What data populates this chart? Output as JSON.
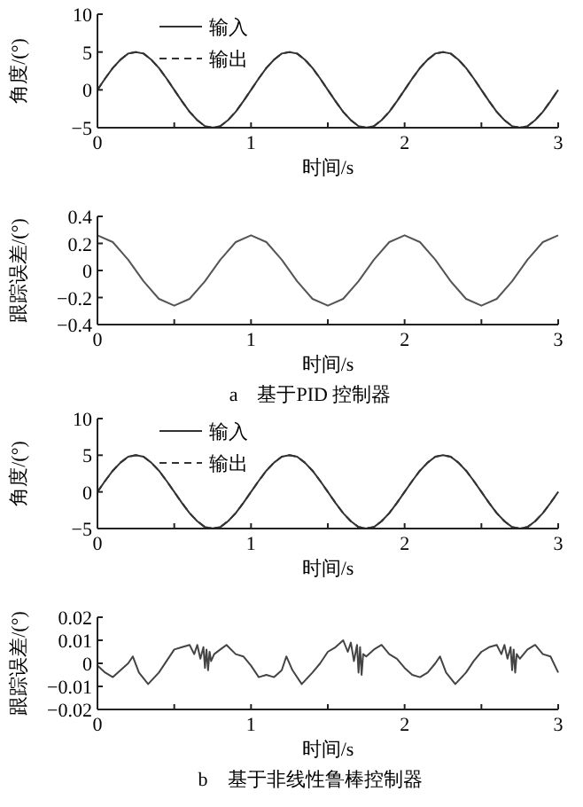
{
  "chart_data": [
    {
      "type": "line",
      "x": [
        0,
        0.05,
        0.1,
        0.15,
        0.2,
        0.25,
        0.3,
        0.35,
        0.4,
        0.45,
        0.5,
        0.55,
        0.6,
        0.65,
        0.7,
        0.75,
        0.8,
        0.85,
        0.9,
        0.95,
        1,
        1.05,
        1.1,
        1.15,
        1.2,
        1.25,
        1.3,
        1.35,
        1.4,
        1.45,
        1.5,
        1.55,
        1.6,
        1.65,
        1.7,
        1.75,
        1.8,
        1.85,
        1.9,
        1.95,
        2,
        2.05,
        2.1,
        2.15,
        2.2,
        2.25,
        2.3,
        2.35,
        2.4,
        2.45,
        2.5,
        2.55,
        2.6,
        2.65,
        2.7,
        2.75,
        2.8,
        2.85,
        2.9,
        2.95,
        3
      ],
      "series": [
        {
          "name": "输入",
          "color": "#333333",
          "line_style": "solid",
          "values": [
            0,
            1.5,
            2.9,
            4,
            4.8,
            5,
            4.8,
            4,
            2.9,
            1.5,
            0,
            -1.5,
            -2.9,
            -4,
            -4.8,
            -5,
            -4.8,
            -4,
            -2.9,
            -1.5,
            0,
            1.5,
            2.9,
            4,
            4.8,
            5,
            4.8,
            4,
            2.9,
            1.5,
            0,
            -1.5,
            -2.9,
            -4,
            -4.8,
            -5,
            -4.8,
            -4,
            -2.9,
            -1.5,
            0,
            1.5,
            2.9,
            4,
            4.8,
            5,
            4.8,
            4,
            2.9,
            1.5,
            0,
            -1.5,
            -2.9,
            -4,
            -4.8,
            -5,
            -4.8,
            -4,
            -2.9,
            -1.5,
            0
          ]
        },
        {
          "name": "输出",
          "color": "#333333",
          "line_style": "dashed",
          "values": [
            0,
            1.5,
            2.9,
            4,
            4.8,
            5,
            4.8,
            4,
            2.9,
            1.5,
            0,
            -1.5,
            -2.9,
            -4,
            -4.8,
            -5,
            -4.8,
            -4,
            -2.9,
            -1.5,
            0,
            1.5,
            2.9,
            4,
            4.8,
            5,
            4.8,
            4,
            2.9,
            1.5,
            0,
            -1.5,
            -2.9,
            -4,
            -4.8,
            -5,
            -4.8,
            -4,
            -2.9,
            -1.5,
            0,
            1.5,
            2.9,
            4,
            4.8,
            5,
            4.8,
            4,
            2.9,
            1.5,
            0,
            -1.5,
            -2.9,
            -4,
            -4.8,
            -5,
            -4.8,
            -4,
            -2.9,
            -1.5,
            0
          ]
        }
      ],
      "xlim": [
        0,
        3
      ],
      "xticks": [
        0,
        {
          "value": 0.5,
          "label": null
        },
        1,
        {
          "value": 1.5,
          "label": null
        },
        2,
        {
          "value": 2.5,
          "label": null
        },
        3
      ],
      "ylim": [
        -5,
        10
      ],
      "yticks": [
        -5,
        0,
        5,
        10
      ],
      "xlabel": "时间/s",
      "ylabel": "角度/(°)",
      "legend": "top left"
    },
    {
      "type": "line",
      "x": [
        0,
        0.1,
        0.2,
        0.3,
        0.4,
        0.5,
        0.6,
        0.7,
        0.8,
        0.9,
        1,
        1.1,
        1.2,
        1.3,
        1.4,
        1.5,
        1.6,
        1.7,
        1.8,
        1.9,
        2,
        2.1,
        2.2,
        2.3,
        2.4,
        2.5,
        2.6,
        2.7,
        2.8,
        2.9,
        3
      ],
      "series": [
        {
          "color": "#555555",
          "values": [
            0.26,
            0.21,
            0.08,
            -0.08,
            -0.21,
            -0.26,
            -0.21,
            -0.08,
            0.08,
            0.21,
            0.26,
            0.21,
            0.08,
            -0.08,
            -0.21,
            -0.26,
            -0.21,
            -0.08,
            0.08,
            0.21,
            0.26,
            0.21,
            0.08,
            -0.08,
            -0.21,
            -0.26,
            -0.21,
            -0.08,
            0.08,
            0.21,
            0.26
          ]
        }
      ],
      "xlim": [
        0,
        3
      ],
      "xticks": [
        0,
        {
          "value": 0.5,
          "label": null
        },
        1,
        {
          "value": 1.5,
          "label": null
        },
        2,
        {
          "value": 2.5,
          "label": null
        },
        3
      ],
      "ylim": [
        -0.4,
        0.4
      ],
      "yticks": [
        -0.4,
        -0.2,
        0,
        0.2,
        0.4
      ],
      "xlabel": "时间/s",
      "ylabel": "跟踪误差/(°)",
      "annotations": [
        "a　基于PID 控制器"
      ]
    },
    {
      "type": "line",
      "x": [
        0,
        0.05,
        0.1,
        0.15,
        0.2,
        0.25,
        0.3,
        0.35,
        0.4,
        0.45,
        0.5,
        0.55,
        0.6,
        0.65,
        0.7,
        0.75,
        0.8,
        0.85,
        0.9,
        0.95,
        1,
        1.05,
        1.1,
        1.15,
        1.2,
        1.25,
        1.3,
        1.35,
        1.4,
        1.45,
        1.5,
        1.55,
        1.6,
        1.65,
        1.7,
        1.75,
        1.8,
        1.85,
        1.9,
        1.95,
        2,
        2.05,
        2.1,
        2.15,
        2.2,
        2.25,
        2.3,
        2.35,
        2.4,
        2.45,
        2.5,
        2.55,
        2.6,
        2.65,
        2.7,
        2.75,
        2.8,
        2.85,
        2.9,
        2.95,
        3
      ],
      "series": [
        {
          "name": "输入",
          "color": "#333333",
          "line_style": "solid",
          "values": [
            0,
            1.5,
            2.9,
            4,
            4.8,
            5,
            4.8,
            4,
            2.9,
            1.5,
            0,
            -1.5,
            -2.9,
            -4,
            -4.8,
            -5,
            -4.8,
            -4,
            -2.9,
            -1.5,
            0,
            1.5,
            2.9,
            4,
            4.8,
            5,
            4.8,
            4,
            2.9,
            1.5,
            0,
            -1.5,
            -2.9,
            -4,
            -4.8,
            -5,
            -4.8,
            -4,
            -2.9,
            -1.5,
            0,
            1.5,
            2.9,
            4,
            4.8,
            5,
            4.8,
            4,
            2.9,
            1.5,
            0,
            -1.5,
            -2.9,
            -4,
            -4.8,
            -5,
            -4.8,
            -4,
            -2.9,
            -1.5,
            0
          ]
        },
        {
          "name": "输出",
          "color": "#333333",
          "line_style": "dashed",
          "values": [
            0,
            1.5,
            2.9,
            4,
            4.8,
            5,
            4.8,
            4,
            2.9,
            1.5,
            0,
            -1.5,
            -2.9,
            -4,
            -4.8,
            -5,
            -4.8,
            -4,
            -2.9,
            -1.5,
            0,
            1.5,
            2.9,
            4,
            4.8,
            5,
            4.8,
            4,
            2.9,
            1.5,
            0,
            -1.5,
            -2.9,
            -4,
            -4.8,
            -5,
            -4.8,
            -4,
            -2.9,
            -1.5,
            0,
            1.5,
            2.9,
            4,
            4.8,
            5,
            4.8,
            4,
            2.9,
            1.5,
            0,
            -1.5,
            -2.9,
            -4,
            -4.8,
            -5,
            -4.8,
            -4,
            -2.9,
            -1.5,
            0
          ]
        }
      ],
      "xlim": [
        0,
        3
      ],
      "xticks": [
        0,
        {
          "value": 0.5,
          "label": null
        },
        1,
        {
          "value": 1.5,
          "label": null
        },
        2,
        {
          "value": 2.5,
          "label": null
        },
        3
      ],
      "ylim": [
        -5,
        10
      ],
      "yticks": [
        -5,
        0,
        5,
        10
      ],
      "xlabel": "时间/s",
      "ylabel": "角度/(°)",
      "legend": "top left"
    },
    {
      "type": "line",
      "x": [
        0,
        0.05,
        0.1,
        0.15,
        0.2,
        0.23,
        0.27,
        0.33,
        0.4,
        0.45,
        0.5,
        0.55,
        0.6,
        0.63,
        0.65,
        0.67,
        0.69,
        0.7,
        0.71,
        0.72,
        0.73,
        0.74,
        0.76,
        0.8,
        0.84,
        0.9,
        0.95,
        1,
        1.05,
        1.1,
        1.15,
        1.2,
        1.23,
        1.27,
        1.33,
        1.4,
        1.45,
        1.5,
        1.55,
        1.6,
        1.63,
        1.65,
        1.67,
        1.69,
        1.7,
        1.71,
        1.72,
        1.73,
        1.75,
        1.8,
        1.85,
        1.9,
        1.95,
        2,
        2.05,
        2.1,
        2.15,
        2.2,
        2.23,
        2.27,
        2.33,
        2.4,
        2.45,
        2.5,
        2.55,
        2.6,
        2.63,
        2.65,
        2.67,
        2.69,
        2.7,
        2.71,
        2.72,
        2.73,
        2.75,
        2.8,
        2.85,
        2.9,
        2.95,
        3
      ],
      "series": [
        {
          "color": "#444444",
          "values": [
            -0.001,
            -0.004,
            -0.006,
            -0.003,
            0,
            0.003,
            -0.004,
            -0.009,
            -0.004,
            0.001,
            0.006,
            0.007,
            0.008,
            0.004,
            0.008,
            0.002,
            0.007,
            -0.002,
            0.006,
            -0.003,
            0.005,
            0.001,
            0.004,
            0.006,
            0.008,
            0.004,
            0.003,
            -0.001,
            -0.006,
            -0.005,
            -0.006,
            -0.003,
            0.003,
            -0.003,
            -0.009,
            -0.004,
            0,
            0.005,
            0.007,
            0.01,
            0.005,
            0.009,
            0.001,
            0.008,
            -0.004,
            0.007,
            -0.005,
            0.004,
            0.003,
            0.006,
            0.008,
            0.004,
            0.002,
            -0.002,
            -0.005,
            -0.006,
            -0.004,
            0,
            0.003,
            -0.004,
            -0.009,
            -0.004,
            0.001,
            0.005,
            0.007,
            0.008,
            0.004,
            0.008,
            0.002,
            0.007,
            -0.003,
            0.006,
            -0.004,
            0.004,
            0.002,
            0.006,
            0.008,
            0.004,
            0.003,
            -0.004
          ]
        }
      ],
      "xlim": [
        0,
        3
      ],
      "xticks": [
        0,
        {
          "value": 0.5,
          "label": null
        },
        1,
        {
          "value": 1.5,
          "label": null
        },
        2,
        {
          "value": 2.5,
          "label": null
        },
        3
      ],
      "ylim": [
        -0.02,
        0.02
      ],
      "yticks": [
        -0.02,
        -0.01,
        0,
        0.01,
        0.02
      ],
      "xlabel": "时间/s",
      "ylabel": "跟踪误差/(°)",
      "annotations": [
        "b　基于非线性鲁棒控制器"
      ]
    }
  ]
}
